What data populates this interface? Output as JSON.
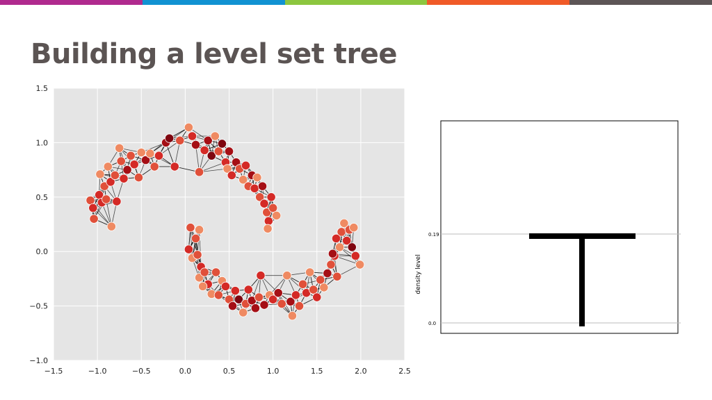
{
  "slide": {
    "title": "Building a level set tree",
    "bar_colors": [
      "#b02a8e",
      "#1192d2",
      "#8cc63f",
      "#f05a28",
      "#5d5556"
    ]
  },
  "chart_data": [
    {
      "type": "scatter",
      "xlim": [
        -1.5,
        2.5
      ],
      "ylim": [
        -1.0,
        1.5
      ],
      "x_ticks": [
        "−1.5",
        "−1.0",
        "−0.5",
        "0.0",
        "0.5",
        "1.0",
        "1.5",
        "2.0",
        "2.5"
      ],
      "y_ticks": [
        "1.5",
        "1.0",
        "0.5",
        "0.0",
        "−0.5",
        "−1.0"
      ],
      "grid": true,
      "background": "#e5e5e5",
      "point_colors": [
        "#f4a582",
        "#ef8a62",
        "#e0503a",
        "#d42a26",
        "#a50f15",
        "#7f0610"
      ],
      "edge_color": "#111111",
      "points": [
        {
          "x": -1.08,
          "y": 0.47,
          "d": 2
        },
        {
          "x": -1.05,
          "y": 0.4,
          "d": 3
        },
        {
          "x": -1.04,
          "y": 0.3,
          "d": 2
        },
        {
          "x": -0.98,
          "y": 0.52,
          "d": 3
        },
        {
          "x": -0.95,
          "y": 0.45,
          "d": 3
        },
        {
          "x": -0.97,
          "y": 0.71,
          "d": 1
        },
        {
          "x": -0.92,
          "y": 0.6,
          "d": 2
        },
        {
          "x": -0.9,
          "y": 0.48,
          "d": 2
        },
        {
          "x": -0.88,
          "y": 0.78,
          "d": 1
        },
        {
          "x": -0.85,
          "y": 0.64,
          "d": 3
        },
        {
          "x": -0.84,
          "y": 0.23,
          "d": 1
        },
        {
          "x": -0.8,
          "y": 0.7,
          "d": 2
        },
        {
          "x": -0.78,
          "y": 0.46,
          "d": 3
        },
        {
          "x": -0.75,
          "y": 0.95,
          "d": 1
        },
        {
          "x": -0.73,
          "y": 0.83,
          "d": 2
        },
        {
          "x": -0.7,
          "y": 0.67,
          "d": 3
        },
        {
          "x": -0.66,
          "y": 0.75,
          "d": 4
        },
        {
          "x": -0.62,
          "y": 0.88,
          "d": 2
        },
        {
          "x": -0.58,
          "y": 0.8,
          "d": 3
        },
        {
          "x": -0.53,
          "y": 0.68,
          "d": 2
        },
        {
          "x": -0.5,
          "y": 0.91,
          "d": 1
        },
        {
          "x": -0.45,
          "y": 0.84,
          "d": 4
        },
        {
          "x": -0.4,
          "y": 0.9,
          "d": 1
        },
        {
          "x": -0.35,
          "y": 0.78,
          "d": 2
        },
        {
          "x": -0.3,
          "y": 0.88,
          "d": 3
        },
        {
          "x": -0.22,
          "y": 1.0,
          "d": 4
        },
        {
          "x": -0.18,
          "y": 1.04,
          "d": 5
        },
        {
          "x": -0.12,
          "y": 0.78,
          "d": 3
        },
        {
          "x": -0.06,
          "y": 1.02,
          "d": 2
        },
        {
          "x": 0.04,
          "y": 1.14,
          "d": 1
        },
        {
          "x": 0.08,
          "y": 1.06,
          "d": 3
        },
        {
          "x": 0.12,
          "y": 0.98,
          "d": 4
        },
        {
          "x": 0.16,
          "y": 0.73,
          "d": 2
        },
        {
          "x": 0.22,
          "y": 0.93,
          "d": 3
        },
        {
          "x": 0.26,
          "y": 1.02,
          "d": 4
        },
        {
          "x": 0.3,
          "y": 0.88,
          "d": 5
        },
        {
          "x": 0.34,
          "y": 1.06,
          "d": 1
        },
        {
          "x": 0.38,
          "y": 0.92,
          "d": 2
        },
        {
          "x": 0.42,
          "y": 0.99,
          "d": 5
        },
        {
          "x": 0.46,
          "y": 0.82,
          "d": 3
        },
        {
          "x": 0.5,
          "y": 0.92,
          "d": 4
        },
        {
          "x": 0.48,
          "y": 0.76,
          "d": 1
        },
        {
          "x": 0.53,
          "y": 0.7,
          "d": 3
        },
        {
          "x": 0.58,
          "y": 0.82,
          "d": 4
        },
        {
          "x": 0.62,
          "y": 0.76,
          "d": 2
        },
        {
          "x": 0.66,
          "y": 0.66,
          "d": 1
        },
        {
          "x": 0.69,
          "y": 0.79,
          "d": 3
        },
        {
          "x": 0.72,
          "y": 0.6,
          "d": 2
        },
        {
          "x": 0.76,
          "y": 0.7,
          "d": 4
        },
        {
          "x": 0.79,
          "y": 0.58,
          "d": 3
        },
        {
          "x": 0.82,
          "y": 0.68,
          "d": 1
        },
        {
          "x": 0.85,
          "y": 0.5,
          "d": 2
        },
        {
          "x": 0.88,
          "y": 0.6,
          "d": 4
        },
        {
          "x": 0.9,
          "y": 0.44,
          "d": 3
        },
        {
          "x": 0.93,
          "y": 0.36,
          "d": 2
        },
        {
          "x": 0.95,
          "y": 0.28,
          "d": 3
        },
        {
          "x": 0.94,
          "y": 0.21,
          "d": 1
        },
        {
          "x": 1.0,
          "y": 0.4,
          "d": 2
        },
        {
          "x": 1.04,
          "y": 0.33,
          "d": 1
        },
        {
          "x": 0.98,
          "y": 0.5,
          "d": 3
        },
        {
          "x": 0.06,
          "y": 0.22,
          "d": 2
        },
        {
          "x": 0.16,
          "y": 0.2,
          "d": 1
        },
        {
          "x": 0.12,
          "y": 0.12,
          "d": 2
        },
        {
          "x": 0.04,
          "y": 0.02,
          "d": 3
        },
        {
          "x": 0.08,
          "y": -0.06,
          "d": 1
        },
        {
          "x": 0.14,
          "y": -0.03,
          "d": 2
        },
        {
          "x": 0.18,
          "y": -0.14,
          "d": 3
        },
        {
          "x": 0.16,
          "y": -0.24,
          "d": 1
        },
        {
          "x": 0.22,
          "y": -0.19,
          "d": 2
        },
        {
          "x": 0.26,
          "y": -0.3,
          "d": 3
        },
        {
          "x": 0.2,
          "y": -0.32,
          "d": 1
        },
        {
          "x": 0.3,
          "y": -0.39,
          "d": 1
        },
        {
          "x": 0.35,
          "y": -0.19,
          "d": 2
        },
        {
          "x": 0.38,
          "y": -0.4,
          "d": 2
        },
        {
          "x": 0.42,
          "y": -0.27,
          "d": 1
        },
        {
          "x": 0.46,
          "y": -0.32,
          "d": 3
        },
        {
          "x": 0.5,
          "y": -0.44,
          "d": 2
        },
        {
          "x": 0.54,
          "y": -0.5,
          "d": 4
        },
        {
          "x": 0.57,
          "y": -0.36,
          "d": 3
        },
        {
          "x": 0.61,
          "y": -0.44,
          "d": 5
        },
        {
          "x": 0.66,
          "y": -0.56,
          "d": 1
        },
        {
          "x": 0.69,
          "y": -0.48,
          "d": 2
        },
        {
          "x": 0.72,
          "y": -0.35,
          "d": 3
        },
        {
          "x": 0.76,
          "y": -0.45,
          "d": 4
        },
        {
          "x": 0.8,
          "y": -0.52,
          "d": 4
        },
        {
          "x": 0.84,
          "y": -0.42,
          "d": 2
        },
        {
          "x": 0.86,
          "y": -0.22,
          "d": 3
        },
        {
          "x": 0.9,
          "y": -0.49,
          "d": 4
        },
        {
          "x": 0.96,
          "y": -0.4,
          "d": 1
        },
        {
          "x": 1.0,
          "y": -0.44,
          "d": 3
        },
        {
          "x": 1.06,
          "y": -0.38,
          "d": 4
        },
        {
          "x": 1.1,
          "y": -0.48,
          "d": 2
        },
        {
          "x": 1.16,
          "y": -0.22,
          "d": 1
        },
        {
          "x": 1.2,
          "y": -0.46,
          "d": 4
        },
        {
          "x": 1.22,
          "y": -0.59,
          "d": 1
        },
        {
          "x": 1.26,
          "y": -0.4,
          "d": 3
        },
        {
          "x": 1.3,
          "y": -0.5,
          "d": 2
        },
        {
          "x": 1.34,
          "y": -0.3,
          "d": 2
        },
        {
          "x": 1.38,
          "y": -0.38,
          "d": 3
        },
        {
          "x": 1.42,
          "y": -0.19,
          "d": 1
        },
        {
          "x": 1.46,
          "y": -0.35,
          "d": 2
        },
        {
          "x": 1.5,
          "y": -0.42,
          "d": 3
        },
        {
          "x": 1.54,
          "y": -0.26,
          "d": 2
        },
        {
          "x": 1.58,
          "y": -0.33,
          "d": 1
        },
        {
          "x": 1.62,
          "y": -0.2,
          "d": 4
        },
        {
          "x": 1.66,
          "y": -0.12,
          "d": 2
        },
        {
          "x": 1.7,
          "y": -0.04,
          "d": 3
        },
        {
          "x": 1.73,
          "y": -0.23,
          "d": 2
        },
        {
          "x": 1.76,
          "y": 0.04,
          "d": 1
        },
        {
          "x": 1.78,
          "y": 0.18,
          "d": 2
        },
        {
          "x": 1.81,
          "y": 0.26,
          "d": 1
        },
        {
          "x": 1.84,
          "y": 0.1,
          "d": 3
        },
        {
          "x": 1.87,
          "y": 0.2,
          "d": 2
        },
        {
          "x": 1.9,
          "y": 0.04,
          "d": 5
        },
        {
          "x": 1.92,
          "y": 0.22,
          "d": 1
        },
        {
          "x": 1.94,
          "y": -0.04,
          "d": 3
        },
        {
          "x": 1.99,
          "y": -0.12,
          "d": 1
        },
        {
          "x": 1.72,
          "y": 0.12,
          "d": 3
        },
        {
          "x": 1.68,
          "y": -0.02,
          "d": 4
        }
      ]
    },
    {
      "type": "tree",
      "ylabel": "density level",
      "y_ticks": [
        "0.19",
        "0.0"
      ],
      "tree": {
        "trunk_bottom": 0.0,
        "split_level": 0.19
      }
    }
  ]
}
